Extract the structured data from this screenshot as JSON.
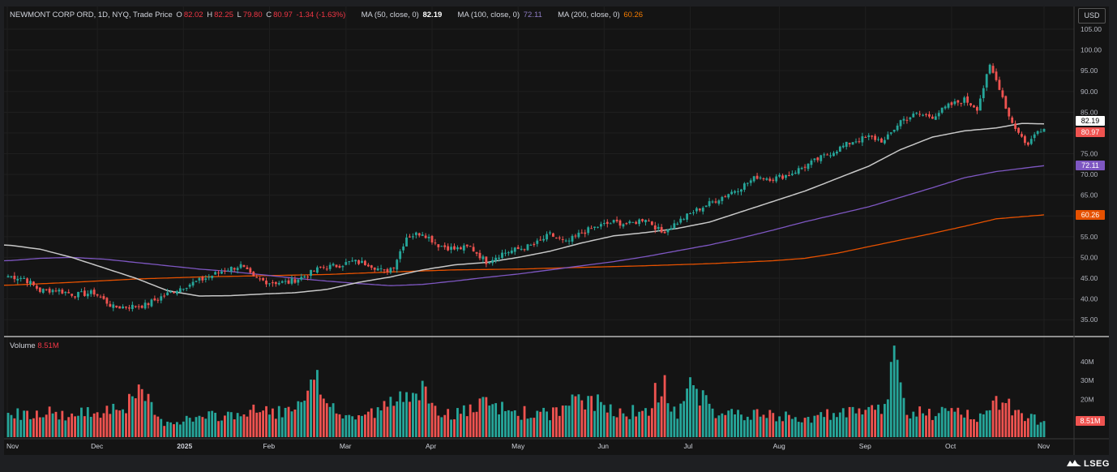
{
  "header": {
    "symbol": "NEWMONT CORP ORD, 1D, NYQ, Trade Price",
    "o_label": "O",
    "o_value": "82.02",
    "h_label": "H",
    "h_value": "82.25",
    "l_label": "L",
    "l_value": "79.80",
    "c_label": "C",
    "c_value": "80.97",
    "change": "-1.34 (-1.63%)",
    "ma50_label": "MA (50, close, 0)",
    "ma50_value": "82.19",
    "ma100_label": "MA (100, close, 0)",
    "ma100_value": "72.11",
    "ma200_label": "MA (200, close, 0)",
    "ma200_value": "60.26"
  },
  "currency_button": "USD",
  "volume_header": {
    "label": "Volume",
    "value": "8.51M"
  },
  "badges": {
    "ma50": "82.19",
    "close": "80.97",
    "ma100": "72.11",
    "ma200": "60.26",
    "volume": "8.51M"
  },
  "logo": "LSEG",
  "colors": {
    "up": "#26a69a",
    "down": "#ef5350",
    "ma50": "#c8c8c8",
    "ma100": "#7e57c2",
    "ma200": "#e65100",
    "background": "#141414"
  },
  "chart_data": {
    "type": "candlestick",
    "title": "NEWMONT CORP ORD, 1D, NYQ, Trade Price",
    "price_axis": {
      "min": 30,
      "max": 107.5,
      "ticks": [
        "105.00",
        "100.00",
        "95.00",
        "90.00",
        "85.00",
        "80.00",
        "75.00",
        "70.00",
        "65.00",
        "60.00",
        "55.00",
        "50.00",
        "45.00",
        "40.00",
        "35.00"
      ],
      "side": "right"
    },
    "volume_axis": {
      "max_millions": 45,
      "ticks": [
        "40M",
        "30M",
        "20M"
      ]
    },
    "x_labels": [
      "Nov",
      "Dec",
      "2025",
      "Feb",
      "Mar",
      "Apr",
      "May",
      "Jun",
      "Jul",
      "Aug",
      "Sep",
      "Oct",
      "Nov"
    ],
    "x_label_bold": "2025",
    "close_keypoints": [
      [
        0,
        45.5
      ],
      [
        5,
        45
      ],
      [
        10,
        42
      ],
      [
        15,
        42.2
      ],
      [
        21,
        41
      ],
      [
        27,
        41.5
      ],
      [
        33,
        38
      ],
      [
        39,
        38.2
      ],
      [
        43,
        38.5
      ],
      [
        48,
        40.5
      ],
      [
        55,
        43
      ],
      [
        62,
        45
      ],
      [
        68,
        47
      ],
      [
        73,
        48
      ],
      [
        77,
        45
      ],
      [
        82,
        44
      ],
      [
        88,
        44
      ],
      [
        93,
        45.5
      ],
      [
        98,
        47.5
      ],
      [
        103,
        48
      ],
      [
        108,
        49
      ],
      [
        113,
        48.5
      ],
      [
        118,
        46.5
      ],
      [
        121,
        48
      ],
      [
        125,
        55
      ],
      [
        130,
        56
      ],
      [
        135,
        53
      ],
      [
        140,
        52
      ],
      [
        145,
        52.5
      ],
      [
        150,
        49
      ],
      [
        155,
        51
      ],
      [
        160,
        52
      ],
      [
        165,
        53
      ],
      [
        170,
        55.5
      ],
      [
        175,
        53.5
      ],
      [
        180,
        56
      ],
      [
        185,
        57.5
      ],
      [
        190,
        58.5
      ],
      [
        195,
        58
      ],
      [
        200,
        59.5
      ],
      [
        205,
        56
      ],
      [
        210,
        58.5
      ],
      [
        215,
        61
      ],
      [
        220,
        63
      ],
      [
        225,
        65
      ],
      [
        230,
        67
      ],
      [
        235,
        69.5
      ],
      [
        240,
        69
      ],
      [
        245,
        70
      ],
      [
        250,
        72
      ],
      [
        255,
        74
      ],
      [
        260,
        76
      ],
      [
        265,
        78
      ],
      [
        270,
        79
      ],
      [
        275,
        78
      ],
      [
        280,
        83
      ],
      [
        285,
        84.5
      ],
      [
        290,
        84
      ],
      [
        295,
        86.5
      ],
      [
        300,
        88
      ],
      [
        304,
        86
      ],
      [
        308,
        96
      ],
      [
        311,
        91
      ],
      [
        314,
        84
      ],
      [
        317,
        80
      ],
      [
        320,
        77
      ],
      [
        323,
        81
      ],
      [
        325,
        80.97
      ]
    ],
    "volume_keypoints_millions": [
      [
        0,
        12
      ],
      [
        10,
        14
      ],
      [
        20,
        11
      ],
      [
        30,
        15
      ],
      [
        38,
        18
      ],
      [
        42,
        23
      ],
      [
        48,
        8
      ],
      [
        60,
        10
      ],
      [
        70,
        12
      ],
      [
        80,
        14
      ],
      [
        90,
        13
      ],
      [
        97,
        28
      ],
      [
        105,
        10
      ],
      [
        115,
        13
      ],
      [
        123,
        20
      ],
      [
        128,
        31
      ],
      [
        133,
        14
      ],
      [
        140,
        12
      ],
      [
        150,
        17
      ],
      [
        160,
        13
      ],
      [
        170,
        12
      ],
      [
        180,
        20
      ],
      [
        190,
        15
      ],
      [
        200,
        12
      ],
      [
        205,
        29
      ],
      [
        210,
        12
      ],
      [
        215,
        30
      ],
      [
        220,
        14
      ],
      [
        230,
        12
      ],
      [
        240,
        11
      ],
      [
        250,
        10
      ],
      [
        260,
        12
      ],
      [
        270,
        13
      ],
      [
        275,
        16
      ],
      [
        278,
        42
      ],
      [
        282,
        14
      ],
      [
        290,
        12
      ],
      [
        300,
        13
      ],
      [
        305,
        10
      ],
      [
        310,
        20
      ],
      [
        313,
        22
      ],
      [
        316,
        12
      ],
      [
        320,
        10
      ],
      [
        325,
        8.51
      ]
    ],
    "ma50_keypoints": [
      [
        0,
        53
      ],
      [
        10,
        52
      ],
      [
        20,
        50
      ],
      [
        30,
        47.5
      ],
      [
        40,
        45
      ],
      [
        50,
        42
      ],
      [
        60,
        40.7
      ],
      [
        70,
        40.8
      ],
      [
        80,
        41.2
      ],
      [
        90,
        41.5
      ],
      [
        100,
        42.3
      ],
      [
        110,
        44
      ],
      [
        120,
        45.3
      ],
      [
        130,
        47
      ],
      [
        140,
        48.2
      ],
      [
        150,
        48.8
      ],
      [
        160,
        50
      ],
      [
        170,
        51.5
      ],
      [
        180,
        53.5
      ],
      [
        190,
        55.2
      ],
      [
        200,
        56
      ],
      [
        210,
        57
      ],
      [
        220,
        58.5
      ],
      [
        230,
        61
      ],
      [
        240,
        63.5
      ],
      [
        250,
        66
      ],
      [
        260,
        69
      ],
      [
        270,
        72
      ],
      [
        280,
        76
      ],
      [
        290,
        79
      ],
      [
        300,
        80.5
      ],
      [
        310,
        81.2
      ],
      [
        318,
        82.3
      ],
      [
        325,
        82.19
      ]
    ],
    "ma100_keypoints": [
      [
        0,
        49.2
      ],
      [
        10,
        49.8
      ],
      [
        20,
        50
      ],
      [
        30,
        49.6
      ],
      [
        40,
        48.8
      ],
      [
        50,
        48
      ],
      [
        60,
        47.2
      ],
      [
        70,
        46.6
      ],
      [
        80,
        45.8
      ],
      [
        90,
        45
      ],
      [
        100,
        44.3
      ],
      [
        110,
        43.7
      ],
      [
        120,
        43.2
      ],
      [
        130,
        43.5
      ],
      [
        140,
        44.3
      ],
      [
        150,
        45.2
      ],
      [
        160,
        46
      ],
      [
        170,
        47
      ],
      [
        180,
        48
      ],
      [
        190,
        49
      ],
      [
        200,
        50.2
      ],
      [
        210,
        51.6
      ],
      [
        220,
        53
      ],
      [
        230,
        54.7
      ],
      [
        240,
        56.6
      ],
      [
        250,
        58.6
      ],
      [
        260,
        60.4
      ],
      [
        270,
        62.2
      ],
      [
        280,
        64.5
      ],
      [
        290,
        66.8
      ],
      [
        300,
        69.2
      ],
      [
        310,
        70.7
      ],
      [
        325,
        72.11
      ]
    ],
    "ma200_keypoints": [
      [
        0,
        43.3
      ],
      [
        20,
        44
      ],
      [
        40,
        44.8
      ],
      [
        60,
        45.3
      ],
      [
        80,
        45.6
      ],
      [
        100,
        45.9
      ],
      [
        120,
        46.5
      ],
      [
        140,
        47
      ],
      [
        160,
        47.2
      ],
      [
        180,
        47.6
      ],
      [
        200,
        48
      ],
      [
        220,
        48.5
      ],
      [
        240,
        49.2
      ],
      [
        250,
        49.8
      ],
      [
        260,
        51
      ],
      [
        270,
        52.6
      ],
      [
        280,
        54.2
      ],
      [
        290,
        55.8
      ],
      [
        300,
        57.5
      ],
      [
        310,
        59.3
      ],
      [
        325,
        60.26
      ]
    ]
  }
}
